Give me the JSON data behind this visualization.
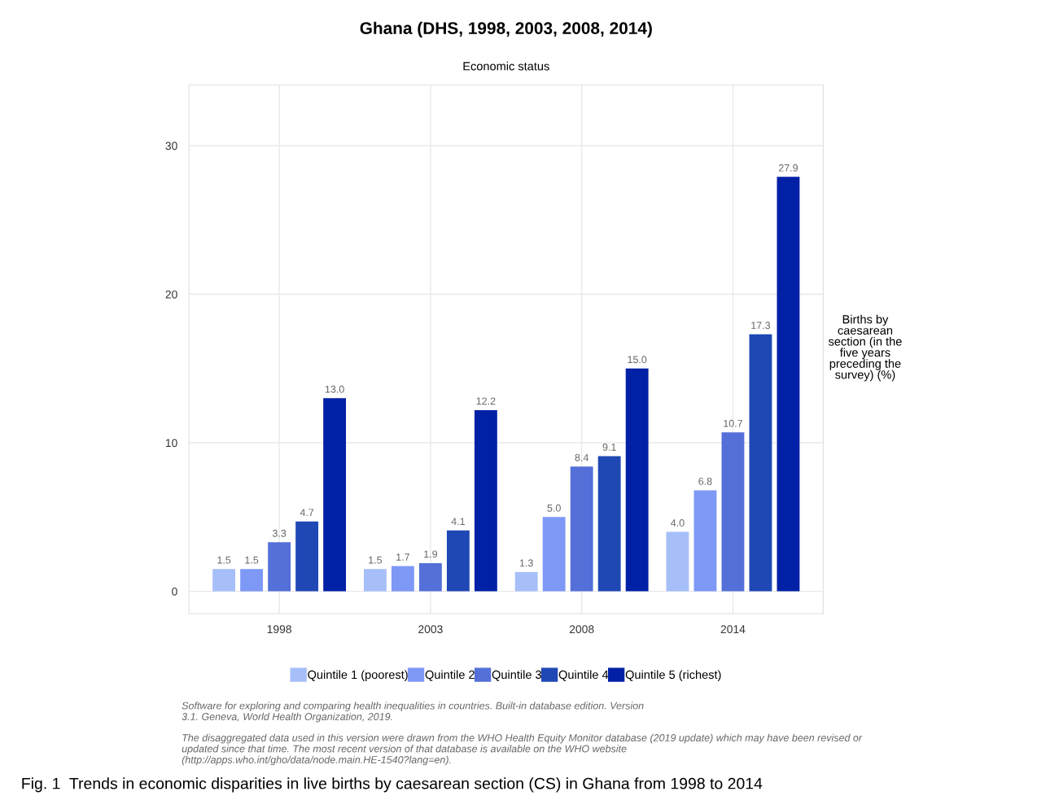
{
  "chart_data": {
    "type": "bar",
    "title": "Ghana (DHS, 1998, 2003, 2008, 2014)",
    "subtitle": "Economic status",
    "categories": [
      "1998",
      "2003",
      "2008",
      "2014"
    ],
    "series": [
      {
        "name": "Quintile 1 (poorest)",
        "color": "#a6bff9",
        "values": [
          1.5,
          1.5,
          1.3,
          4.0
        ],
        "value_labels": [
          "1.5",
          "1.5",
          "1.3",
          "4.0"
        ]
      },
      {
        "name": "Quintile 2",
        "color": "#7e98f6",
        "values": [
          1.5,
          1.7,
          5.0,
          6.8
        ],
        "value_labels": [
          "1.5",
          "1.7",
          "5.0",
          "6.8"
        ]
      },
      {
        "name": "Quintile 3",
        "color": "#5470d8",
        "values": [
          3.3,
          1.9,
          8.4,
          10.7
        ],
        "value_labels": [
          "3.3",
          "1.9",
          "8.4",
          "10.7"
        ]
      },
      {
        "name": "Quintile 4",
        "color": "#1f48b5",
        "values": [
          4.7,
          4.1,
          9.1,
          17.3
        ],
        "value_labels": [
          "4.7",
          "4.1",
          "9.1",
          "17.3"
        ]
      },
      {
        "name": "Quintile 5 (richest)",
        "color": "#0020a5",
        "values": [
          13.0,
          12.2,
          15.0,
          27.9
        ],
        "value_labels": [
          "13.0",
          "12.2",
          "15.0",
          "27.9"
        ]
      }
    ],
    "ylim": [
      -1.5,
      34.1
    ],
    "yticks": [
      0,
      10,
      20,
      30
    ],
    "grid": true,
    "legend": "bottom",
    "annotations": [
      "Births by\ncaesarean\nsection (in the\nfive years\npreceding the\nsurvey) (%)",
      "Software for exploring and comparing health inequalities in countries. Built-in database edition. Version\n3.1. Geneva, World Health Organization, 2019.",
      "The disaggregated data used in this version were drawn from the WHO Health Equity Monitor database (2019 update) which may have been revised or\nupdated since that time. The most recent version of that database is available on the WHO website\n(http://apps.who.int/gho/data/node.main.HE-1540?lang=en).",
      "Fig. 1  Trends in economic disparities in live births by caesarean section (CS) in Ghana from 1998 to 2014"
    ]
  }
}
